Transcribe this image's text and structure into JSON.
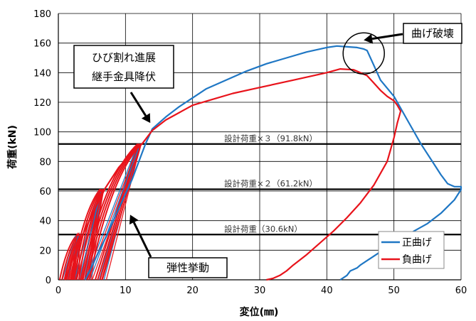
{
  "chart_data": {
    "type": "line",
    "xlabel": "変位(㎜)",
    "ylabel": "荷重(kN)",
    "xlim": [
      0,
      60
    ],
    "ylim": [
      0,
      180
    ],
    "x_ticks": [
      "0",
      "10",
      "20",
      "30",
      "40",
      "50",
      "60"
    ],
    "y_ticks": [
      "0",
      "20",
      "40",
      "60",
      "80",
      "100",
      "120",
      "140",
      "160",
      "180"
    ],
    "grid": true,
    "legend_position": "bottom-right",
    "reference_lines": [
      {
        "y": 30.6,
        "label": "設計荷重（30.6kN）"
      },
      {
        "y": 61.2,
        "label": "設計荷重×２（61.2kN）"
      },
      {
        "y": 91.8,
        "label": "設計荷重×３（91.8kN）"
      }
    ],
    "annotations": [
      {
        "lines": [
          "ひび割れ進展",
          "継手金具降伏"
        ],
        "points_to": [
          13.7,
          106
        ]
      },
      {
        "lines": [
          "曲げ破壊"
        ],
        "points_to": [
          45.5,
          162
        ]
      },
      {
        "lines": [
          "弾性挙動"
        ],
        "points_to": [
          10.7,
          44
        ]
      }
    ],
    "highlight_circle": {
      "cx": 45.5,
      "cy": 153
    },
    "series": [
      {
        "name": "正曲げ",
        "color": "#1f77c4",
        "x": [
          4,
          5,
          6,
          7,
          8,
          9,
          10,
          11,
          12,
          13,
          14,
          16,
          18,
          20,
          22,
          25,
          28,
          31,
          34,
          37,
          40,
          41.5,
          43,
          44.5,
          45.5,
          46,
          47,
          48,
          50,
          52,
          54,
          56,
          57,
          58,
          59,
          60,
          60,
          59,
          57,
          55,
          53,
          51,
          49,
          48,
          47,
          46,
          45,
          44.5,
          44,
          43.5,
          43,
          42.5,
          42
        ],
        "y": [
          0,
          9,
          19,
          28,
          38,
          48,
          58,
          68,
          80,
          92,
          102,
          110,
          117,
          123,
          129,
          135,
          141,
          146,
          150,
          154,
          157,
          158,
          157.5,
          157,
          156,
          155,
          145,
          135,
          124,
          108,
          92,
          78,
          71,
          65,
          63,
          63,
          61,
          54,
          45,
          38,
          33,
          27,
          22,
          19,
          16,
          13,
          10,
          8,
          7,
          6,
          3,
          1.5,
          0
        ]
      },
      {
        "name": "負曲げ",
        "color": "#e8131b",
        "x": [
          1,
          3,
          5,
          7,
          9,
          11,
          12.5,
          14,
          16,
          18,
          20,
          23,
          26,
          30,
          35,
          40,
          42,
          44,
          46,
          47,
          48,
          49,
          50,
          50.5,
          51,
          50.5,
          50,
          49,
          47,
          45,
          43,
          41,
          39,
          37,
          35,
          34,
          33,
          32,
          31
        ],
        "y": [
          0,
          24,
          44,
          62,
          76,
          86,
          92,
          101,
          108,
          113,
          118,
          122,
          126,
          130,
          135,
          140,
          142.5,
          142,
          138,
          133,
          128,
          124,
          121,
          118,
          114,
          106,
          96,
          80,
          64,
          52,
          42,
          33,
          25,
          17,
          10,
          6,
          3,
          1,
          0
        ]
      }
    ]
  }
}
